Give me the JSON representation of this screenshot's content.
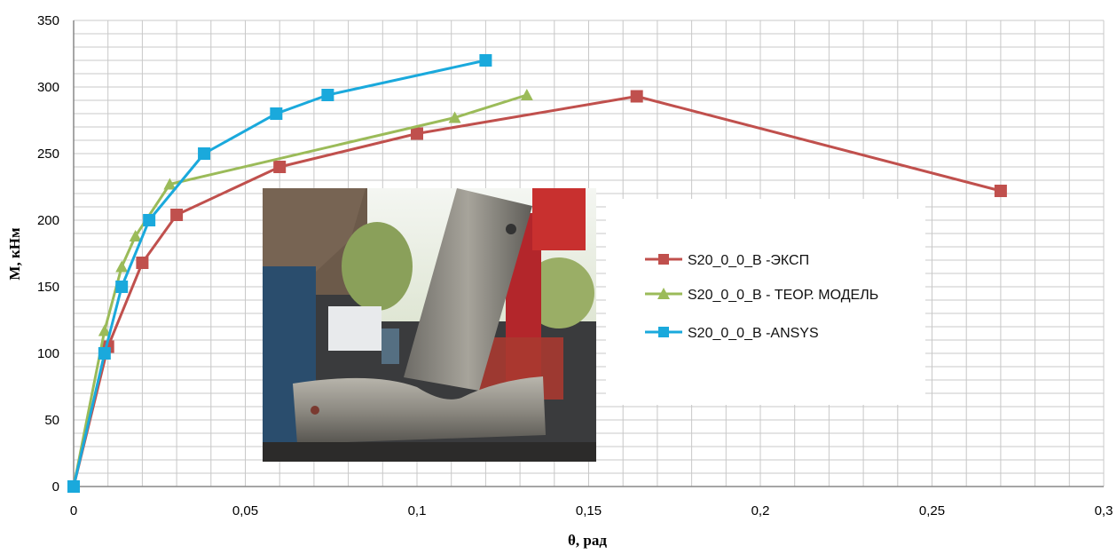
{
  "chart_data": {
    "type": "line",
    "xlabel": "θ, рад",
    "ylabel": "M, кНм",
    "xlim": [
      0,
      0.3
    ],
    "ylim": [
      0,
      350
    ],
    "x_ticks": [
      "0",
      "0,05",
      "0,1",
      "0,15",
      "0,2",
      "0,25",
      "0,3"
    ],
    "y_ticks": [
      "0",
      "50",
      "100",
      "150",
      "200",
      "250",
      "300",
      "350"
    ],
    "grid": true,
    "legend_position": "right",
    "inset": "photo-of-tested-specimen",
    "series": [
      {
        "name": "S20_0_0_B -ЭКСП",
        "color": "#c0504d",
        "marker": "square",
        "x": [
          0,
          0.01,
          0.02,
          0.03,
          0.06,
          0.1,
          0.164,
          0.27
        ],
        "y": [
          0,
          105,
          168,
          204,
          240,
          265,
          293,
          222
        ]
      },
      {
        "name": "S20_0_0_B - ТЕОР.  МОДЕЛЬ",
        "color": "#9bbb59",
        "marker": "triangle",
        "x": [
          0,
          0.009,
          0.014,
          0.018,
          0.028,
          0.111,
          0.132
        ],
        "y": [
          0,
          117,
          165,
          188,
          227,
          277,
          294
        ]
      },
      {
        "name": "S20_0_0_B -ANSYS",
        "color": "#1aa9dc",
        "marker": "square",
        "x": [
          0,
          0.009,
          0.014,
          0.022,
          0.038,
          0.059,
          0.074,
          0.12
        ],
        "y": [
          0,
          100,
          150,
          200,
          250,
          280,
          294,
          320
        ]
      }
    ]
  }
}
